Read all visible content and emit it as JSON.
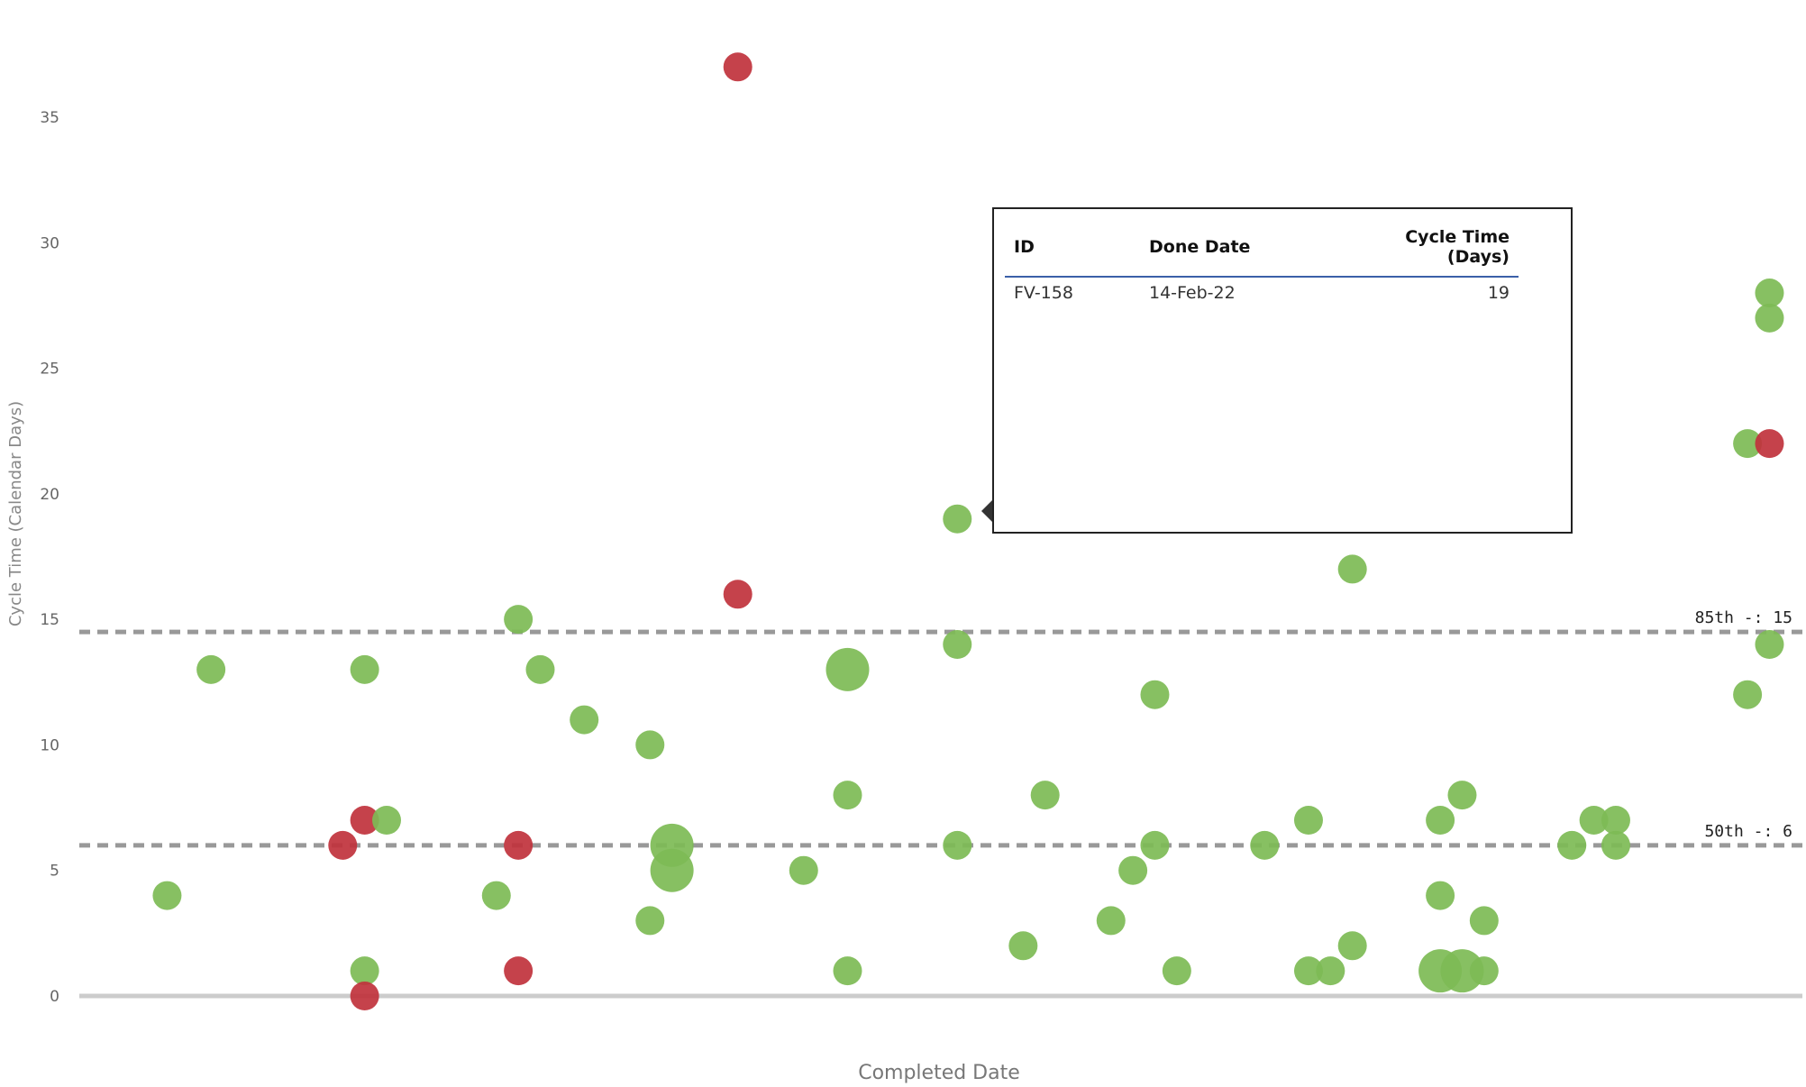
{
  "chart_data": {
    "type": "scatter",
    "title": "",
    "xlabel": "Completed Date",
    "ylabel": "Cycle Time (Calendar Days)",
    "ylim": [
      0,
      38
    ],
    "yticks": [
      0,
      5,
      10,
      15,
      20,
      25,
      30,
      35
    ],
    "grid": false,
    "colors": {
      "on_target": "#7dbb55",
      "over_target": "#c0323c",
      "reference_line": "#999999",
      "baseline": "#cccccc"
    },
    "reference_lines": [
      {
        "label": "85th -: 15",
        "y": 14.5
      },
      {
        "label": "50th -: 6",
        "y": 6
      }
    ],
    "points": [
      {
        "x": 1,
        "y": 4,
        "status": "on_target",
        "count": 1
      },
      {
        "x": 3,
        "y": 13,
        "status": "on_target",
        "count": 1
      },
      {
        "x": 9,
        "y": 6,
        "status": "over_target",
        "count": 1
      },
      {
        "x": 10,
        "y": 7,
        "status": "over_target",
        "count": 1
      },
      {
        "x": 10,
        "y": 13,
        "status": "on_target",
        "count": 1
      },
      {
        "x": 10,
        "y": 1,
        "status": "on_target",
        "count": 1
      },
      {
        "x": 10,
        "y": 0,
        "status": "over_target",
        "count": 1
      },
      {
        "x": 11,
        "y": 7,
        "status": "on_target",
        "count": 1
      },
      {
        "x": 16,
        "y": 4,
        "status": "on_target",
        "count": 1
      },
      {
        "x": 17,
        "y": 15,
        "status": "on_target",
        "count": 1
      },
      {
        "x": 17,
        "y": 6,
        "status": "over_target",
        "count": 1
      },
      {
        "x": 17,
        "y": 1,
        "status": "over_target",
        "count": 1
      },
      {
        "x": 18,
        "y": 13,
        "status": "on_target",
        "count": 1
      },
      {
        "x": 20,
        "y": 11,
        "status": "on_target",
        "count": 1
      },
      {
        "x": 23,
        "y": 10,
        "status": "on_target",
        "count": 1
      },
      {
        "x": 23,
        "y": 3,
        "status": "on_target",
        "count": 1
      },
      {
        "x": 24,
        "y": 6,
        "status": "on_target",
        "count": 2
      },
      {
        "x": 24,
        "y": 5,
        "status": "on_target",
        "count": 2
      },
      {
        "x": 27,
        "y": 37,
        "status": "over_target",
        "count": 1
      },
      {
        "x": 27,
        "y": 16,
        "status": "over_target",
        "count": 1
      },
      {
        "x": 30,
        "y": 5,
        "status": "on_target",
        "count": 1
      },
      {
        "x": 32,
        "y": 13,
        "status": "on_target",
        "count": 2
      },
      {
        "x": 32,
        "y": 8,
        "status": "on_target",
        "count": 1
      },
      {
        "x": 32,
        "y": 1,
        "status": "on_target",
        "count": 1
      },
      {
        "x": 37,
        "y": 19,
        "status": "on_target",
        "count": 1
      },
      {
        "x": 37,
        "y": 14,
        "status": "on_target",
        "count": 1
      },
      {
        "x": 37,
        "y": 6,
        "status": "on_target",
        "count": 1
      },
      {
        "x": 40,
        "y": 2,
        "status": "on_target",
        "count": 1
      },
      {
        "x": 41,
        "y": 8,
        "status": "on_target",
        "count": 1
      },
      {
        "x": 44,
        "y": 3,
        "status": "on_target",
        "count": 1
      },
      {
        "x": 45,
        "y": 5,
        "status": "on_target",
        "count": 1
      },
      {
        "x": 46,
        "y": 12,
        "status": "on_target",
        "count": 1
      },
      {
        "x": 46,
        "y": 6,
        "status": "on_target",
        "count": 1
      },
      {
        "x": 47,
        "y": 1,
        "status": "on_target",
        "count": 1
      },
      {
        "x": 51,
        "y": 6,
        "status": "on_target",
        "count": 1
      },
      {
        "x": 53,
        "y": 7,
        "status": "on_target",
        "count": 1
      },
      {
        "x": 53,
        "y": 1,
        "status": "on_target",
        "count": 1
      },
      {
        "x": 54,
        "y": 1,
        "status": "on_target",
        "count": 1
      },
      {
        "x": 55,
        "y": 17,
        "status": "on_target",
        "count": 1
      },
      {
        "x": 55,
        "y": 2,
        "status": "on_target",
        "count": 1
      },
      {
        "x": 59,
        "y": 7,
        "status": "on_target",
        "count": 1
      },
      {
        "x": 59,
        "y": 4,
        "status": "on_target",
        "count": 1
      },
      {
        "x": 59,
        "y": 1,
        "status": "on_target",
        "count": 2
      },
      {
        "x": 60,
        "y": 8,
        "status": "on_target",
        "count": 1
      },
      {
        "x": 60,
        "y": 1,
        "status": "on_target",
        "count": 2
      },
      {
        "x": 61,
        "y": 3,
        "status": "on_target",
        "count": 1
      },
      {
        "x": 61,
        "y": 1,
        "status": "on_target",
        "count": 1
      },
      {
        "x": 65,
        "y": 6,
        "status": "on_target",
        "count": 1
      },
      {
        "x": 66,
        "y": 7,
        "status": "on_target",
        "count": 1
      },
      {
        "x": 67,
        "y": 7,
        "status": "on_target",
        "count": 1
      },
      {
        "x": 67,
        "y": 6,
        "status": "on_target",
        "count": 1
      },
      {
        "x": 73,
        "y": 22,
        "status": "on_target",
        "count": 1
      },
      {
        "x": 73,
        "y": 12,
        "status": "on_target",
        "count": 1
      },
      {
        "x": 74,
        "y": 28,
        "status": "on_target",
        "count": 1
      },
      {
        "x": 74,
        "y": 27,
        "status": "on_target",
        "count": 1
      },
      {
        "x": 74,
        "y": 22,
        "status": "over_target",
        "count": 1
      },
      {
        "x": 74,
        "y": 14,
        "status": "on_target",
        "count": 1
      }
    ],
    "xlim": [
      -3,
      75.5
    ]
  },
  "tooltip": {
    "columns": [
      "ID",
      "Done Date",
      "Cycle Time (Days)"
    ],
    "row": {
      "id": "FV-158",
      "done_date": "14-Feb-22",
      "cycle_time": "19"
    }
  }
}
